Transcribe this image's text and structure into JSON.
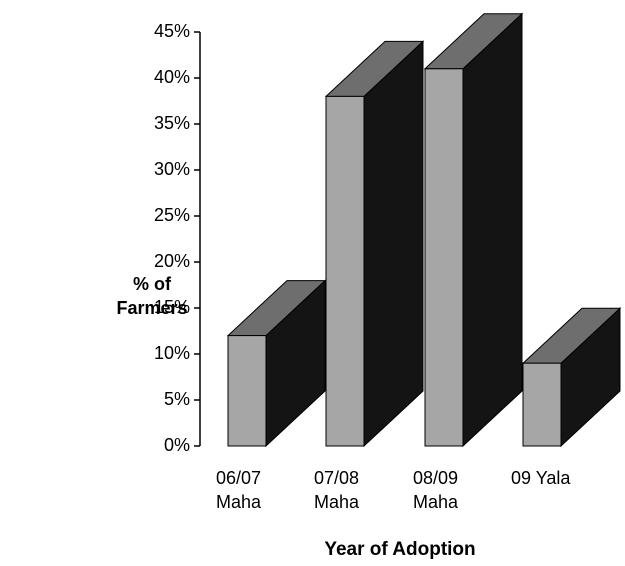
{
  "chart_data": {
    "type": "bar3d",
    "y_label": "% of Farmers",
    "x_label": "Year of Adoption",
    "categories": [
      "06/07 Maha",
      "07/08 Maha",
      "08/09 Maha",
      "09 Yala"
    ],
    "values": [
      12,
      38,
      41,
      9
    ],
    "color": "#a6a6a6",
    "ylim": [
      0,
      45
    ],
    "yticks": [
      {
        "value": 0,
        "label": "0%"
      },
      {
        "value": 5,
        "label": "5%"
      },
      {
        "value": 10,
        "label": "10%"
      },
      {
        "value": 15,
        "label": "15%"
      },
      {
        "value": 20,
        "label": "20%"
      },
      {
        "value": 25,
        "label": "25%"
      },
      {
        "value": 30,
        "label": "30%"
      },
      {
        "value": 35,
        "label": "35%"
      },
      {
        "value": 40,
        "label": "40%"
      },
      {
        "value": 45,
        "label": "45%"
      }
    ]
  }
}
